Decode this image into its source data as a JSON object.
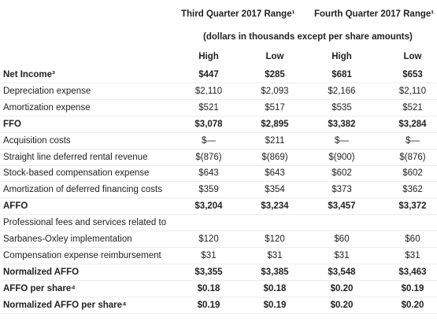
{
  "header": {
    "groups": [
      "Third Quarter 2017 Range¹",
      "Fourth Quarter 2017 Range¹"
    ],
    "subtitle": "(dollars in thousands except per share amounts)",
    "columns": [
      "High",
      "Low",
      "High",
      "Low"
    ]
  },
  "rows": [
    {
      "label": "Net Income³",
      "values": [
        "$447",
        "$285",
        "$681",
        "$653"
      ],
      "bold": true
    },
    {
      "label": "Depreciation expense",
      "values": [
        "$2,110",
        "$2,093",
        "$2,166",
        "$2,110"
      ]
    },
    {
      "label": "Amortization expense",
      "values": [
        "$521",
        "$517",
        "$535",
        "$521"
      ]
    },
    {
      "label": "FFO",
      "values": [
        "$3,078",
        "$2,895",
        "$3,382",
        "$3,284"
      ],
      "bold": true
    },
    {
      "label": "Acquisition costs",
      "values": [
        "$—",
        "$211",
        "$—",
        "$—"
      ]
    },
    {
      "label": "Straight line deferred rental revenue",
      "values": [
        "$(876)",
        "$(869)",
        "$(900)",
        "$(876)"
      ]
    },
    {
      "label": "Stock-based compensation expense",
      "values": [
        "$643",
        "$643",
        "$602",
        "$602"
      ]
    },
    {
      "label": "Amortization of deferred financing costs",
      "values": [
        "$359",
        "$354",
        "$373",
        "$362"
      ]
    },
    {
      "label": "AFFO",
      "values": [
        "$3,204",
        "$3,234",
        "$3,457",
        "$3,372"
      ],
      "bold": true
    },
    {
      "label": "Professional fees and services related to",
      "values": []
    },
    {
      "label": "Sarbanes-Oxley implementation",
      "values": [
        "$120",
        "$120",
        "$60",
        "$60"
      ]
    },
    {
      "label": "Compensation expense reimbursement",
      "values": [
        "$31",
        "$31",
        "$31",
        "$31"
      ]
    },
    {
      "label": "Normalized AFFO",
      "values": [
        "$3,355",
        "$3,385",
        "$3,548",
        "$3,463"
      ],
      "bold": true
    },
    {
      "label": "AFFO per share⁴",
      "values": [
        "$0.18",
        "$0.18",
        "$0.20",
        "$0.19"
      ],
      "bold": true
    },
    {
      "label": "Normalized AFFO per share⁴",
      "values": [
        "$0.19",
        "$0.19",
        "$0.20",
        "$0.20"
      ],
      "bold": true
    }
  ]
}
